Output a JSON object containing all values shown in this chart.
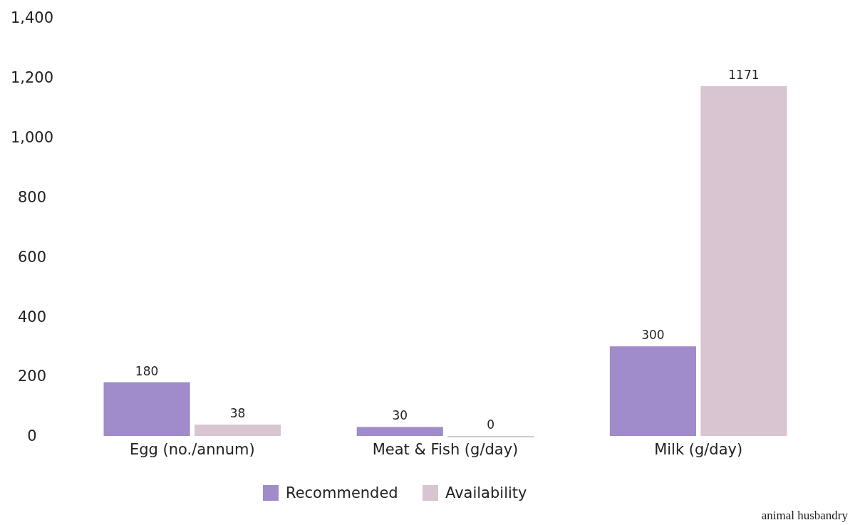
{
  "chart_data": {
    "type": "bar",
    "categories": [
      "Egg (no./annum)",
      "Meat & Fish (g/day)",
      "Milk (g/day)"
    ],
    "series": [
      {
        "name": "Recommended",
        "color": "#a08bcb",
        "values": [
          180,
          30,
          300
        ]
      },
      {
        "name": "Availability",
        "color": "#d9c4d1",
        "values": [
          38,
          0,
          1171
        ]
      }
    ],
    "ylim": [
      0,
      1400
    ],
    "yticks": [
      0,
      200,
      400,
      600,
      800,
      {
        "value": 1000,
        "label": "1,000"
      },
      {
        "value": 1200,
        "label": "1,200"
      },
      {
        "value": 1400,
        "label": "1,400"
      }
    ],
    "data_labels": true,
    "legend": "bottom",
    "grid": false,
    "annotations": [
      "animal husbandry"
    ]
  }
}
